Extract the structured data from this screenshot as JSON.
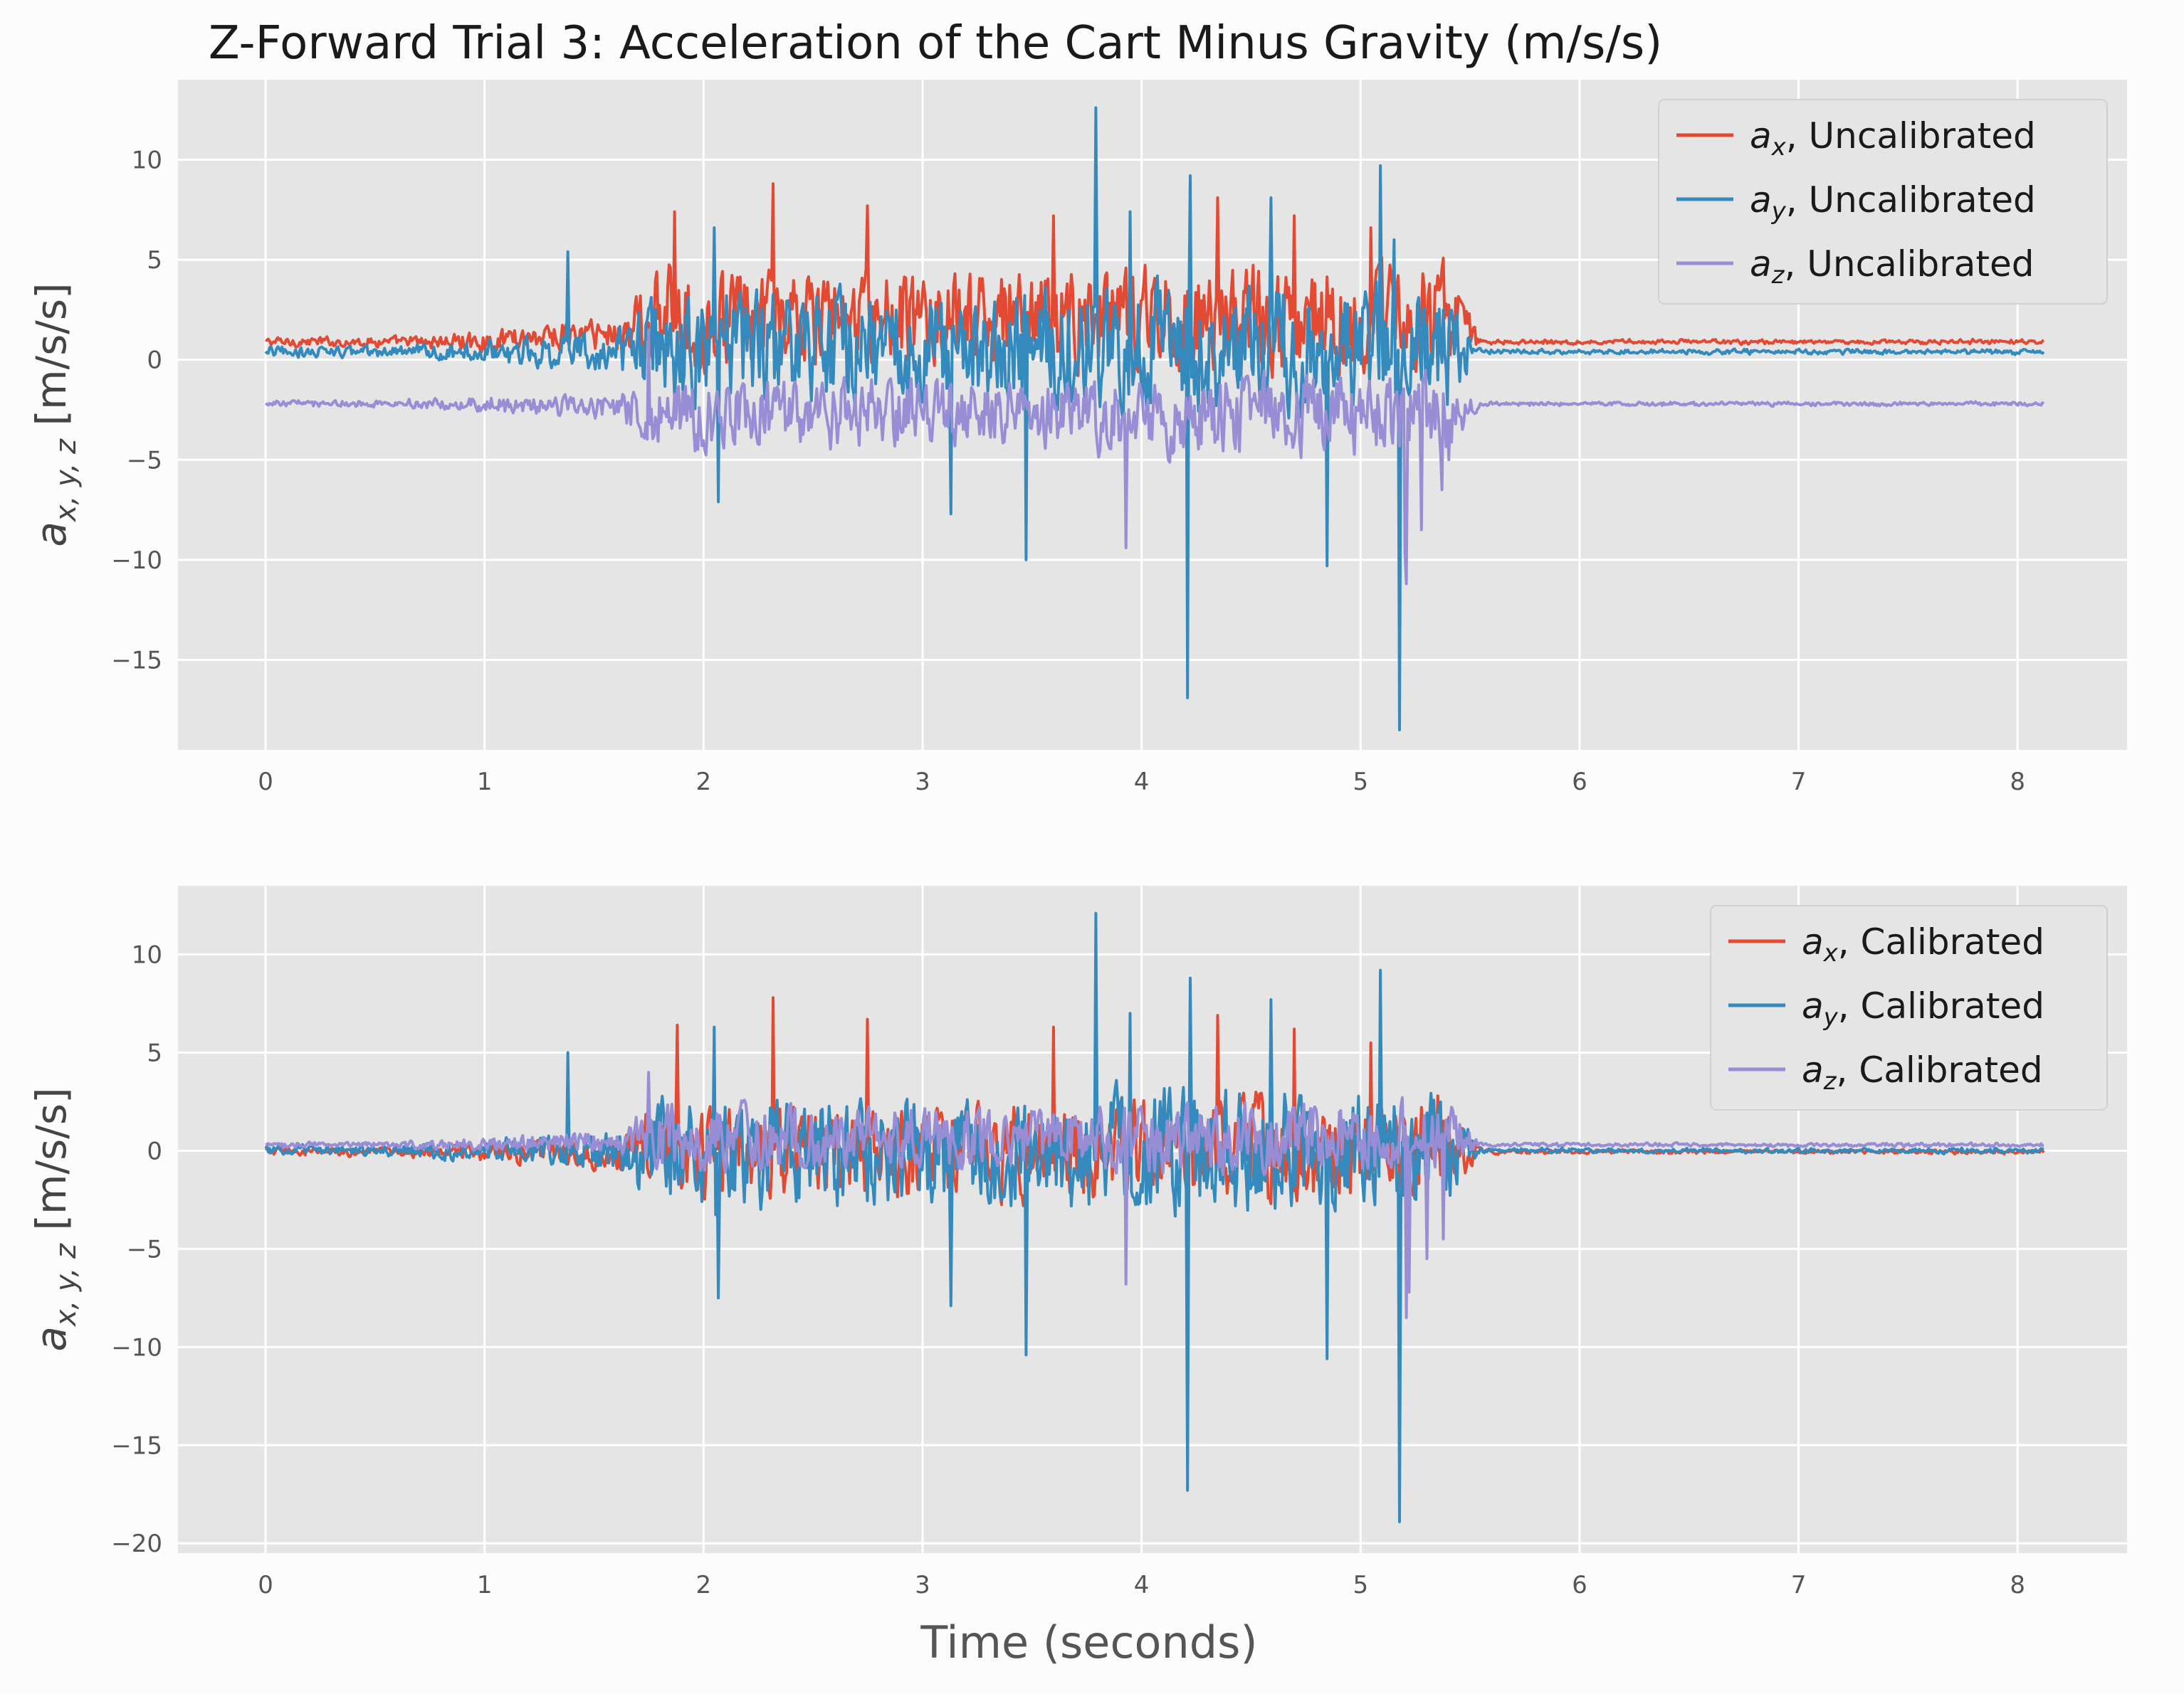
{
  "figure": {
    "title": "Z-Forward Trial 3: Acceleration of the Cart Minus Gravity (m/s/s)",
    "xlabel": "Time (seconds)"
  },
  "chart_data": [
    {
      "type": "line",
      "ylabel": {
        "base": "a",
        "sub": "x, y, z",
        "unit": "[m/s/s]"
      },
      "xlim": [
        -0.4,
        8.5
      ],
      "ylim": [
        -19.5,
        14
      ],
      "xticks": [
        0,
        1,
        2,
        3,
        4,
        5,
        6,
        7,
        8
      ],
      "yticks": [
        10,
        5,
        0,
        -5,
        -10,
        -15
      ],
      "grid": true,
      "legend_position": "top-right",
      "series": [
        {
          "name": "Uncalibrated",
          "sym": "a",
          "sub": "x",
          "color": "#e24a33",
          "baseline": 0.9,
          "active_offset": 1.2,
          "noise": 3.6,
          "spikes": [
            [
              1.87,
              7.4
            ],
            [
              2.32,
              8.8
            ],
            [
              2.75,
              7.7
            ],
            [
              3.6,
              7.2
            ],
            [
              4.35,
              8.1
            ],
            [
              4.7,
              7.2
            ],
            [
              5.05,
              6.6
            ],
            [
              5.35,
              4.2
            ]
          ]
        },
        {
          "name": "Uncalibrated",
          "sym": "a",
          "sub": "y",
          "color": "#348abd",
          "baseline": 0.4,
          "active_offset": 0.2,
          "noise": 4.2,
          "spikes": [
            [
              1.38,
              5.4
            ],
            [
              2.05,
              6.6
            ],
            [
              2.07,
              -7.1
            ],
            [
              3.13,
              -7.7
            ],
            [
              3.47,
              -10.0
            ],
            [
              3.79,
              12.6
            ],
            [
              3.95,
              7.4
            ],
            [
              4.21,
              -16.9
            ],
            [
              4.22,
              9.2
            ],
            [
              4.59,
              8.1
            ],
            [
              4.85,
              -10.3
            ],
            [
              5.09,
              9.7
            ],
            [
              5.18,
              -18.5
            ],
            [
              5.15,
              6.0
            ]
          ]
        },
        {
          "name": "Uncalibrated",
          "sym": "a",
          "sub": "z",
          "color": "#988ed5",
          "baseline": -2.2,
          "active_offset": -0.6,
          "noise": 2.6,
          "spikes": [
            [
              1.75,
              1.5
            ],
            [
              3.93,
              -9.4
            ],
            [
              5.21,
              -11.2
            ],
            [
              5.2,
              -9.7
            ],
            [
              5.28,
              -8.5
            ],
            [
              5.37,
              -6.5
            ],
            [
              5.4,
              -5.0
            ],
            [
              5.44,
              -2.0
            ]
          ]
        }
      ]
    },
    {
      "type": "line",
      "ylabel": {
        "base": "a",
        "sub": "x, y, z",
        "unit": "[m/s/s]"
      },
      "xlim": [
        -0.4,
        8.5
      ],
      "ylim": [
        -20.5,
        13.5
      ],
      "xticks": [
        0,
        1,
        2,
        3,
        4,
        5,
        6,
        7,
        8
      ],
      "yticks": [
        10,
        5,
        0,
        -5,
        -10,
        -15,
        -20
      ],
      "grid": true,
      "legend_position": "top-right",
      "series": [
        {
          "name": "Calibrated",
          "sym": "a",
          "sub": "x",
          "color": "#e24a33",
          "baseline": -0.05,
          "active_offset": 0.0,
          "noise": 3.4,
          "spikes": [
            [
              1.88,
              6.4
            ],
            [
              2.32,
              7.8
            ],
            [
              2.75,
              6.7
            ],
            [
              3.6,
              6.3
            ],
            [
              4.35,
              6.9
            ],
            [
              4.7,
              6.2
            ],
            [
              5.05,
              5.5
            ],
            [
              5.35,
              2.8
            ]
          ]
        },
        {
          "name": "Calibrated",
          "sym": "a",
          "sub": "y",
          "color": "#348abd",
          "baseline": 0.0,
          "active_offset": -0.1,
          "noise": 4.1,
          "spikes": [
            [
              1.38,
              5.0
            ],
            [
              2.05,
              6.3
            ],
            [
              2.07,
              -7.5
            ],
            [
              3.13,
              -7.9
            ],
            [
              3.47,
              -10.4
            ],
            [
              3.79,
              12.1
            ],
            [
              3.95,
              7.0
            ],
            [
              4.21,
              -17.3
            ],
            [
              4.22,
              8.8
            ],
            [
              4.59,
              7.7
            ],
            [
              4.85,
              -10.6
            ],
            [
              5.09,
              9.2
            ],
            [
              5.18,
              -18.9
            ]
          ]
        },
        {
          "name": "Calibrated",
          "sym": "a",
          "sub": "z",
          "color": "#988ed5",
          "baseline": 0.3,
          "active_offset": 0.4,
          "noise": 2.4,
          "spikes": [
            [
              1.75,
              4.0
            ],
            [
              3.93,
              -6.8
            ],
            [
              5.21,
              -8.5
            ],
            [
              5.22,
              -7.2
            ],
            [
              5.3,
              -5.5
            ],
            [
              5.38,
              -4.5
            ],
            [
              5.44,
              0.5
            ]
          ]
        }
      ]
    }
  ]
}
